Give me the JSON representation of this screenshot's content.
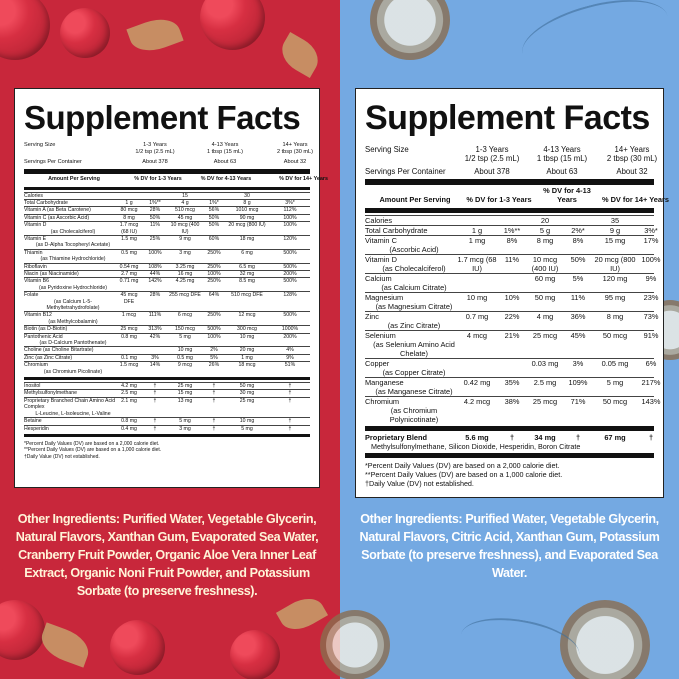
{
  "left": {
    "title": "Supplement Facts",
    "serving_size_label": "Serving Size",
    "servings_per_container_label": "Servings Per Container",
    "age_groups": [
      {
        "age": "1-3 Years",
        "serving": "1/2 tsp (2.5 mL)",
        "servings": "About 378"
      },
      {
        "age": "4-13 Years",
        "serving": "1 tbsp (15 mL)",
        "servings": "About 63"
      },
      {
        "age": "14+ Years",
        "serving": "2 tbsp (30 mL)",
        "servings": "About 32"
      }
    ],
    "header": {
      "amount": "Amount Per Serving",
      "dv1": "% DV for 1-3 Years",
      "dv2": "% DV for 4-13 Years",
      "dv3": "% DV for 14+ Years"
    },
    "rows": [
      {
        "name": "Calories",
        "sub": "",
        "a1": "",
        "d1": "",
        "a2": "15",
        "d2": "",
        "a3": "30",
        "d3": ""
      },
      {
        "name": "Total Carbohydrate",
        "sub": "",
        "a1": "1 g",
        "d1": "1%**",
        "a2": "4 g",
        "d2": "1%*",
        "a3": "8 g",
        "d3": "3%*"
      },
      {
        "name": "Vitamin A (as Beta Carotene)",
        "sub": "",
        "a1": "80 mcg",
        "d1": "28%",
        "a2": "510 mcg",
        "d2": "56%",
        "a3": "1010 mcg",
        "d3": "112%"
      },
      {
        "name": "Vitamin C (as Ascorbic Acid)",
        "sub": "",
        "a1": "8 mg",
        "d1": "50%",
        "a2": "45 mg",
        "d2": "50%",
        "a3": "90 mg",
        "d3": "100%"
      },
      {
        "name": "Vitamin D",
        "sub": "(as Cholecalciferol)",
        "a1": "1.7 mcg (68 IU)",
        "d1": "11%",
        "a2": "10 mcg (400 IU)",
        "d2": "50%",
        "a3": "20 mcg (800 IU)",
        "d3": "100%"
      },
      {
        "name": "Vitamin E",
        "sub": "(as D-Alpha Tocopheryl Acetate)",
        "a1": "1.5 mg",
        "d1": "25%",
        "a2": "9 mg",
        "d2": "60%",
        "a3": "18 mg",
        "d3": "120%"
      },
      {
        "name": "Thiamin",
        "sub": "(as Thiamine Hydrochloride)",
        "a1": "0.5 mg",
        "d1": "100%",
        "a2": "3 mg",
        "d2": "250%",
        "a3": "6 mg",
        "d3": "500%"
      },
      {
        "name": "Riboflavin",
        "sub": "",
        "a1": "0.54 mg",
        "d1": "108%",
        "a2": "3.25 mg",
        "d2": "250%",
        "a3": "6.5 mg",
        "d3": "500%"
      },
      {
        "name": "Niacin (as Niacinamide)",
        "sub": "",
        "a1": "2.7 mg",
        "d1": "44%",
        "a2": "16 mg",
        "d2": "100%",
        "a3": "32 mg",
        "d3": "200%"
      },
      {
        "name": "Vitamin B6",
        "sub": "(as Pyridoxine Hydrochloride)",
        "a1": "0.71 mg",
        "d1": "142%",
        "a2": "4.25 mg",
        "d2": "250%",
        "a3": "8.5 mg",
        "d3": "500%"
      },
      {
        "name": "Folate",
        "sub": "(as Calcium L-5-Methyltetrahydrofolate)",
        "a1": "45 mcg DFE",
        "d1": "28%",
        "a2": "255 mcg DFE",
        "d2": "64%",
        "a3": "510 mcg DFE",
        "d3": "128%"
      },
      {
        "name": "Vitamin B12",
        "sub": "(as Methylcobalamin)",
        "a1": "1 mcg",
        "d1": "111%",
        "a2": "6 mcg",
        "d2": "250%",
        "a3": "12 mcg",
        "d3": "500%"
      },
      {
        "name": "Biotin (as D-Biotin)",
        "sub": "",
        "a1": "25 mcg",
        "d1": "313%",
        "a2": "150 mcg",
        "d2": "500%",
        "a3": "300 mcg",
        "d3": "1000%"
      },
      {
        "name": "Pantothenic Acid",
        "sub": "(as D-Calcium Pantothenate)",
        "a1": "0.8 mg",
        "d1": "42%",
        "a2": "5 mg",
        "d2": "100%",
        "a3": "10 mg",
        "d3": "200%"
      },
      {
        "name": "Choline (as Choline Bitartrate)",
        "sub": "",
        "a1": "",
        "d1": "",
        "a2": "10 mg",
        "d2": "2%",
        "a3": "20 mg",
        "d3": "4%"
      },
      {
        "name": "Zinc (as Zinc Citrate)",
        "sub": "",
        "a1": "0.1 mg",
        "d1": "3%",
        "a2": "0.5 mg",
        "d2": "5%",
        "a3": "1 mg",
        "d3": "9%"
      },
      {
        "name": "Chromium",
        "sub": "(as Chromium Picolinate)",
        "a1": "1.5 mcg",
        "d1": "14%",
        "a2": "9 mcg",
        "d2": "26%",
        "a3": "18 mcg",
        "d3": "51%"
      }
    ],
    "rows2": [
      {
        "name": "Inositol",
        "sub": "",
        "a1": "4.2 mg",
        "d1": "†",
        "a2": "25 mg",
        "d2": "†",
        "a3": "50 mg",
        "d3": "†"
      },
      {
        "name": "Methylsulfonylmethane",
        "sub": "",
        "a1": "2.5 mg",
        "d1": "†",
        "a2": "15 mg",
        "d2": "†",
        "a3": "30 mg",
        "d3": "†"
      },
      {
        "name": "Proprietary Branched Chain Amino Acid Complex",
        "sub": "L-Leucine, L-Isoleucine, L-Valine",
        "a1": "2.1 mg",
        "d1": "†",
        "a2": "13 mg",
        "d2": "†",
        "a3": "25 mg",
        "d3": "†"
      },
      {
        "name": "Betaine",
        "sub": "",
        "a1": "0.8 mg",
        "d1": "†",
        "a2": "5 mg",
        "d2": "†",
        "a3": "10 mg",
        "d3": "†"
      },
      {
        "name": "Hesperidin",
        "sub": "",
        "a1": "0.4 mg",
        "d1": "†",
        "a2": "3 mg",
        "d2": "†",
        "a3": "5 mg",
        "d3": "†"
      }
    ],
    "footnotes": [
      "*Percent Daily Values (DV) are based on a 2,000 calorie diet.",
      "**Percent Daily Values (DV) are based on a 1,000 calorie diet.",
      "†Daily Value (DV) not established."
    ],
    "other_ingredients": "Other Ingredients: Purified Water, Vegetable Glycerin, Natural Flavors, Xanthan Gum, Evaporated Sea Water, Cranberry Fruit Powder, Organic Aloe Vera Inner Leaf Extract, Organic Noni Fruit Powder, and Potassium Sorbate (to preserve freshness)."
  },
  "right": {
    "title": "Supplement Facts",
    "serving_size_label": "Serving Size",
    "servings_per_container_label": "Servings Per Container",
    "age_groups": [
      {
        "age": "1-3 Years",
        "serving": "1/2 tsp (2.5 mL)",
        "servings": "About 378"
      },
      {
        "age": "4-13 Years",
        "serving": "1 tbsp (15 mL)",
        "servings": "About 63"
      },
      {
        "age": "14+ Years",
        "serving": "2 tbsp (30 mL)",
        "servings": "About 32"
      }
    ],
    "header": {
      "amount": "Amount Per Serving",
      "dv1": "% DV for 1-3 Years",
      "dv2": "% DV for 4-13 Years",
      "dv3": "% DV for 14+ Years"
    },
    "rows": [
      {
        "name": "Calories",
        "sub": "",
        "a1": "",
        "d1": "",
        "a2": "20",
        "d2": "",
        "a3": "35",
        "d3": ""
      },
      {
        "name": "Total Carbohydrate",
        "sub": "",
        "a1": "1 g",
        "d1": "1%**",
        "a2": "5 g",
        "d2": "2%*",
        "a3": "9 g",
        "d3": "3%*"
      },
      {
        "name": "Vitamin C",
        "sub": "(Ascorbic Acid)",
        "a1": "1 mg",
        "d1": "8%",
        "a2": "8 mg",
        "d2": "8%",
        "a3": "15 mg",
        "d3": "17%"
      },
      {
        "name": "Vitamin D",
        "sub": "(as Cholecalciferol)",
        "a1": "1.7 mcg (68 IU)",
        "d1": "11%",
        "a2": "10 mcg (400 IU)",
        "d2": "50%",
        "a3": "20 mcg (800 IU)",
        "d3": "100%"
      },
      {
        "name": "Calcium",
        "sub": "(as Calcium Citrate)",
        "a1": "",
        "d1": "",
        "a2": "60 mg",
        "d2": "5%",
        "a3": "120 mg",
        "d3": "9%"
      },
      {
        "name": "Magnesium",
        "sub": "(as Magnesium Citrate)",
        "a1": "10 mg",
        "d1": "10%",
        "a2": "50 mg",
        "d2": "11%",
        "a3": "95 mg",
        "d3": "23%"
      },
      {
        "name": "Zinc",
        "sub": "(as Zinc Citrate)",
        "a1": "0.7 mg",
        "d1": "22%",
        "a2": "4 mg",
        "d2": "36%",
        "a3": "8 mg",
        "d3": "73%"
      },
      {
        "name": "Selenium",
        "sub": "(as Selenium Amino Acid Chelate)",
        "a1": "4 mcg",
        "d1": "21%",
        "a2": "25 mcg",
        "d2": "45%",
        "a3": "50 mcg",
        "d3": "91%"
      },
      {
        "name": "Copper",
        "sub": "(as Copper Citrate)",
        "a1": "",
        "d1": "",
        "a2": "0.03 mg",
        "d2": "3%",
        "a3": "0.05 mg",
        "d3": "6%"
      },
      {
        "name": "Manganese",
        "sub": "(as Manganese Citrate)",
        "a1": "0.42 mg",
        "d1": "35%",
        "a2": "2.5 mg",
        "d2": "109%",
        "a3": "5 mg",
        "d3": "217%"
      },
      {
        "name": "Chromium",
        "sub": "(as Chromium Polynicotinate)",
        "a1": "4.2 mcg",
        "d1": "38%",
        "a2": "25 mcg",
        "d2": "71%",
        "a3": "50 mcg",
        "d3": "143%"
      }
    ],
    "blend": {
      "name": "Proprietary Blend",
      "a1": "5.6 mg",
      "d1": "†",
      "a2": "34 mg",
      "d2": "†",
      "a3": "67 mg",
      "d3": "†",
      "sub": "Methylsulfonylmethane, Silicon Dioxide, Hesperidin, Boron Citrate"
    },
    "footnotes": [
      "*Percent Daily Values (DV) are based on a 2,000 calorie diet.",
      "**Percent Daily Values (DV) are based on a 1,000 calorie diet.",
      "†Daily Value (DV) not established."
    ],
    "other_ingredients": "Other Ingredients: Purified Water, Vegetable Glycerin, Natural Flavors, Citric Acid, Xanthan Gum, Potassium Sorbate (to preserve freshness), and Evaporated Sea Water."
  },
  "colors": {
    "left_bg": "#c8273b",
    "right_bg": "#74a9e2",
    "left_text": "#fff4d8",
    "right_text": "#ffffff"
  }
}
